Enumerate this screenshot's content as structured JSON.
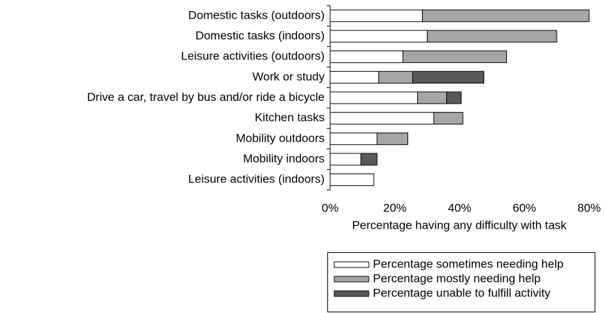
{
  "chart_data": {
    "type": "stacked-barh",
    "categories": [
      "Domestic tasks (outdoors)",
      "Domestic tasks (indoors)",
      "Leisure activities (outdoors)",
      "Work or study",
      "Drive a car, travel by bus and/or ride a bicycle",
      "Kitchen tasks",
      "Mobility outdoors",
      "Mobility indoors",
      "Leisure activities (indoors)"
    ],
    "series": [
      {
        "name": "Percentage sometimes needing help",
        "color": "#ffffff",
        "values": [
          28.5,
          30,
          22.5,
          15,
          27,
          32,
          14.5,
          9.5,
          13.5
        ]
      },
      {
        "name": "Percentage mostly needing help",
        "color": "#a6a6a6",
        "values": [
          51.5,
          40,
          32,
          10.5,
          9,
          9,
          9.5,
          0,
          0
        ]
      },
      {
        "name": "Percentage unable to fulfill activity",
        "color": "#595959",
        "values": [
          0,
          0,
          0,
          22,
          4.5,
          0,
          0,
          5,
          0
        ]
      }
    ],
    "xlabel": "Percentage having any difficulty with task",
    "xlim": [
      0,
      80
    ],
    "xticks": [
      {
        "value": 0,
        "label": "0%"
      },
      {
        "value": 20,
        "label": "20%"
      },
      {
        "value": 40,
        "label": "40%"
      },
      {
        "value": 60,
        "label": "60%"
      },
      {
        "value": 80,
        "label": "80%"
      }
    ]
  }
}
